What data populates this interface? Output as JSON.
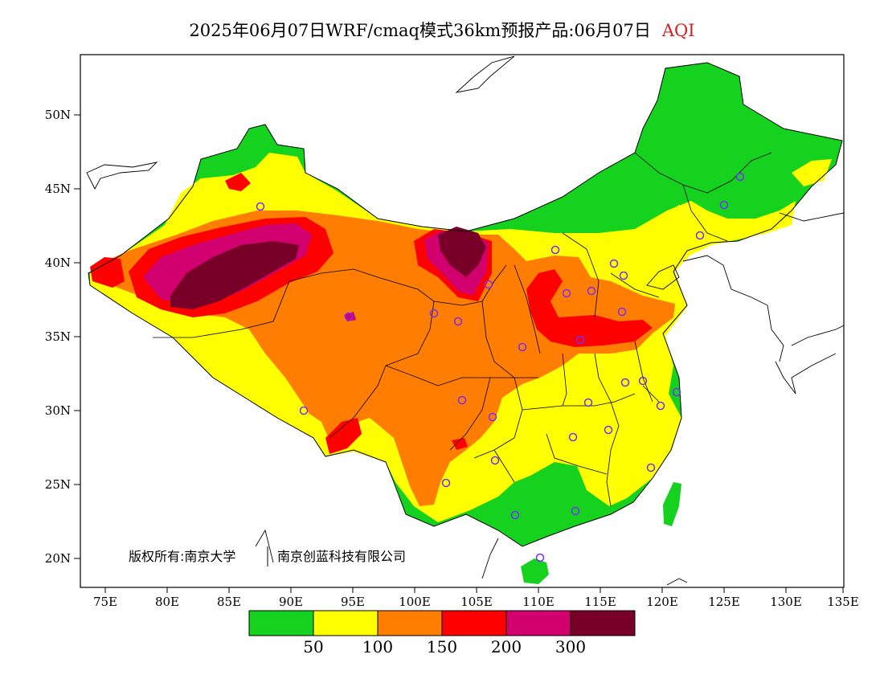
{
  "title": {
    "text": "2025年06月07日WRF/cmaq模式36km预报产品:06月07日",
    "variable": "AQI",
    "variable_color": "#d62020"
  },
  "axes": {
    "lat_labels": [
      "50N",
      "45N",
      "40N",
      "35N",
      "30N",
      "25N",
      "20N"
    ],
    "lon_labels": [
      "75E",
      "80E",
      "85E",
      "90E",
      "95E",
      "100E",
      "105E",
      "110E",
      "115E",
      "120E",
      "125E",
      "130E",
      "135E"
    ]
  },
  "copyright": {
    "left": "版权所有:南京大学",
    "right": "南京创蓝科技有限公司"
  },
  "legend": {
    "colors": [
      "#14d21e",
      "#ffff00",
      "#ff7d00",
      "#ff0000",
      "#d2006e",
      "#780028"
    ],
    "thresholds": [
      "50",
      "100",
      "150",
      "200",
      "300"
    ]
  },
  "sites_icon": "circle-marker-icon"
}
